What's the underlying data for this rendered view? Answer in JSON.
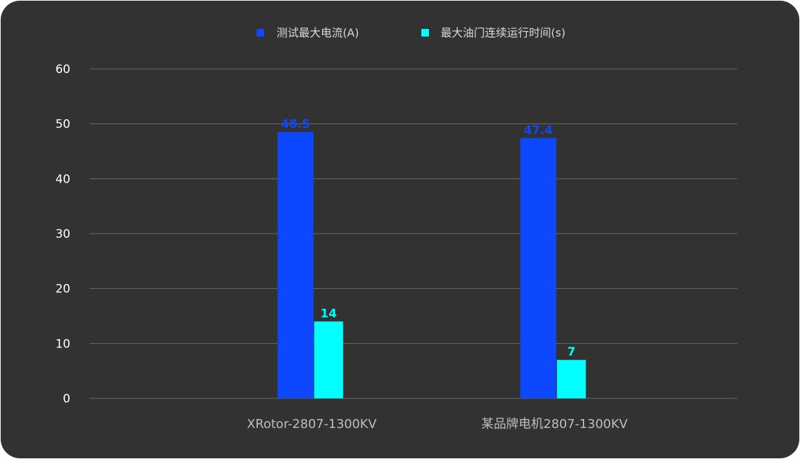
{
  "chart_data": {
    "type": "bar",
    "categories": [
      "XRotor-2807-1300KV",
      "某品牌电机2807-1300KV"
    ],
    "series": [
      {
        "name": "测试最大电流(A)",
        "values": [
          48.5,
          47.4
        ],
        "color": "#0d48ff",
        "label_color": "#0d48ff"
      },
      {
        "name": "最大油门连续运行时间(s)",
        "values": [
          14,
          7
        ],
        "color": "#00ffff",
        "label_color": "#00ffff"
      }
    ],
    "yticks": [
      "0",
      "10",
      "20",
      "30",
      "40",
      "50",
      "60"
    ],
    "ylim": [
      0,
      60
    ],
    "xlabel": "",
    "ylabel": "",
    "grid": true,
    "legend_position": "top-center"
  },
  "colors": {
    "background": "#323232",
    "grid": "#6b6b6b",
    "tick_text": "#ffffff",
    "category_text": "#bdbdbd",
    "legend_text": "#d9d9d9"
  }
}
